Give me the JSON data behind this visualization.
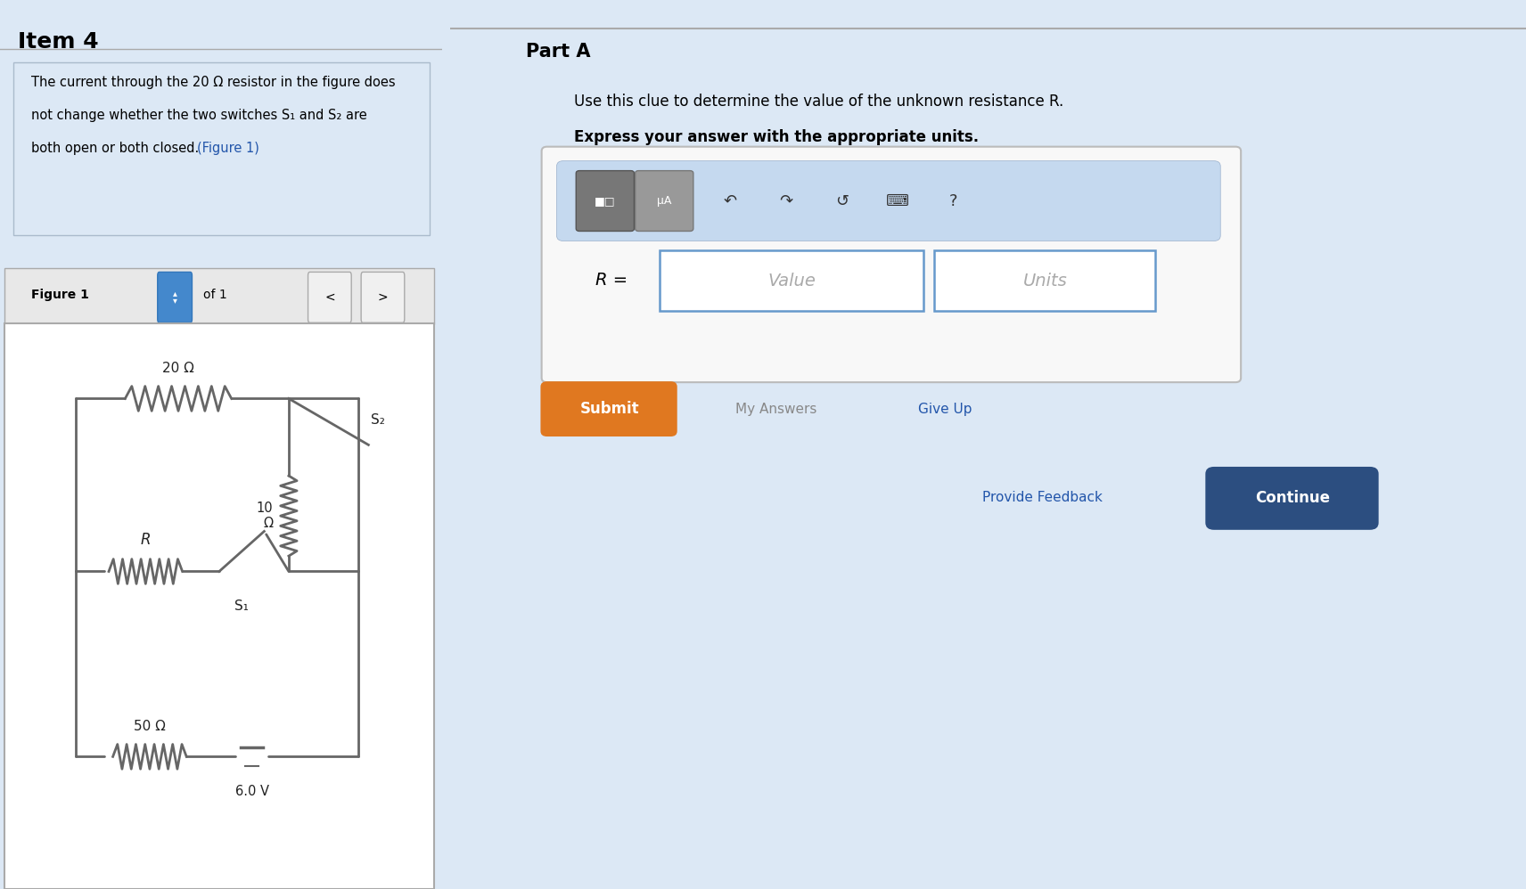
{
  "title": "Item 4",
  "left_panel_bg": "#dce8f5",
  "right_panel_bg": "#ffffff",
  "body_text_line1": "The current through the 20 Ω resistor in the figure does",
  "body_text_line2": "not change whether the two switches S₁ and S₂ are",
  "body_text_line3": "both open or both closed.",
  "figure_1_link": "(Figure 1)",
  "part_a_title": "Part A",
  "part_a_text": "Use this clue to determine the value of the unknown resistance R.",
  "part_a_bold": "Express your answer with the appropriate units.",
  "r_label": "R =",
  "value_placeholder": "Value",
  "units_placeholder": "Units",
  "submit_text": "Submit",
  "my_answers_text": "My Answers",
  "give_up_text": "Give Up",
  "provide_feedback_text": "Provide Feedback",
  "continue_text": "Continue",
  "figure_label": "Figure 1",
  "of_label": "of 1",
  "voltage_label": "6.0 V",
  "s1_label": "S₁",
  "s2_label": "S₂",
  "resistor_top_label": "20 Ω",
  "resistor_mid_label": "R",
  "resistor_bot_label": "50 Ω",
  "resistor_right_label": "10\nΩ",
  "submit_color": "#e07820",
  "continue_color": "#2c4e80",
  "input_border_color": "#6699cc",
  "toolbar_bg": "#c5d9ef",
  "divider_color": "#aaaaaa",
  "circuit_line_color": "#666666",
  "text_color": "#000000",
  "link_color": "#2255aa",
  "figure_bar_color": "#e8e8e8",
  "arrow_btn_color": "#4488cc",
  "icon_gray1": "#777777",
  "icon_gray2": "#999999"
}
